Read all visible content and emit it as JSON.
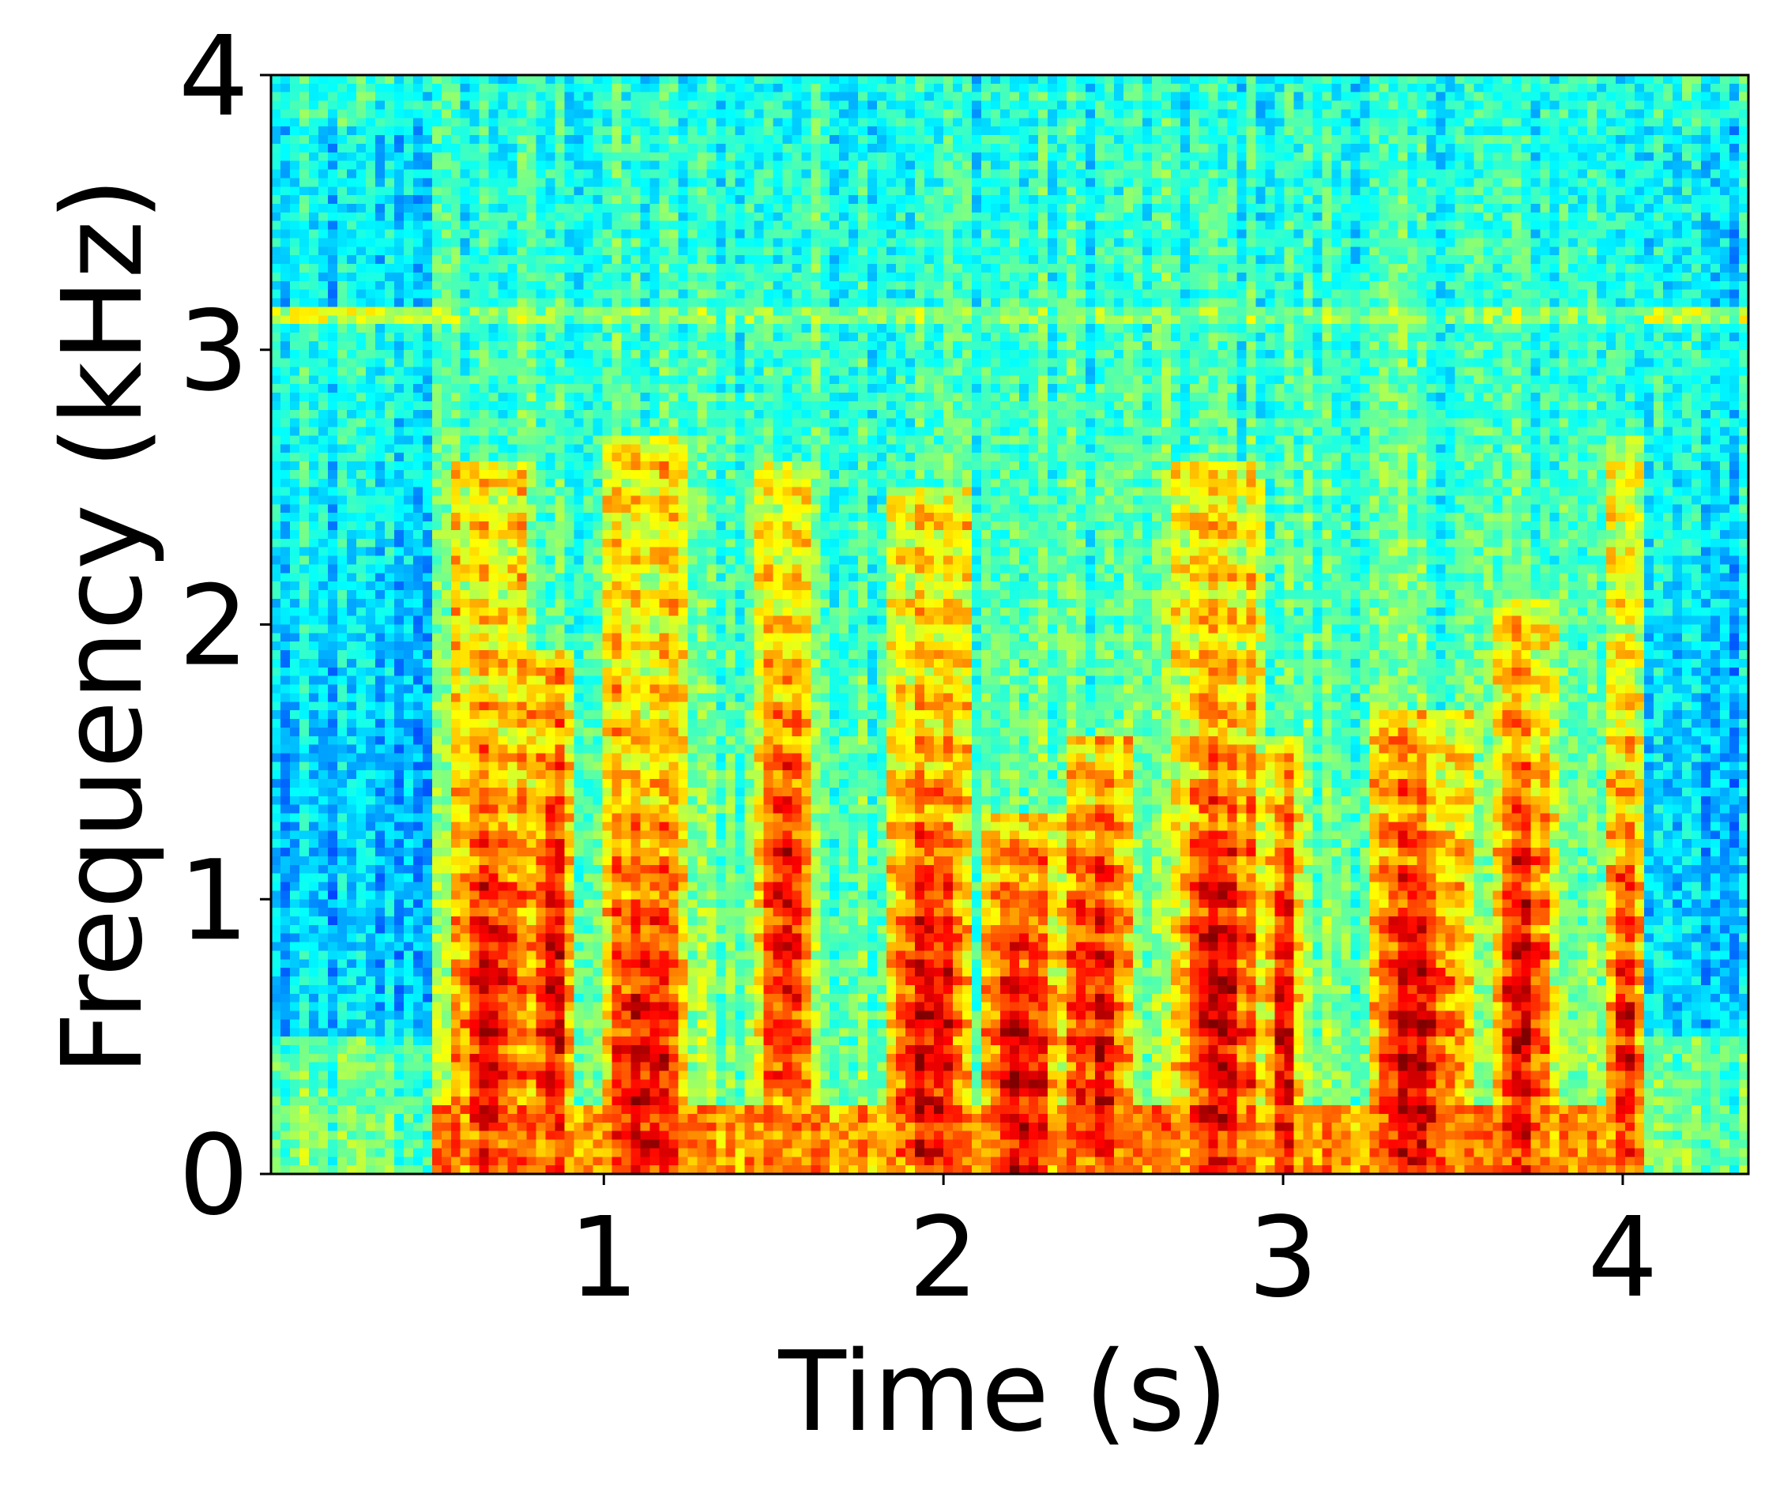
{
  "chart_data": {
    "type": "heatmap",
    "title": "",
    "xlabel": "Time (s)",
    "ylabel": "Frequency (kHz)",
    "xlim": [
      0.02,
      4.37
    ],
    "ylim": [
      0,
      4
    ],
    "x_ticks": [
      1,
      2,
      3,
      4
    ],
    "y_ticks": [
      0,
      1,
      2,
      3,
      4
    ],
    "x_tick_labels": [
      "1",
      "2",
      "3",
      "4"
    ],
    "y_tick_labels": [
      "0",
      "1",
      "2",
      "3",
      "4"
    ],
    "colormap": "jet",
    "grid": false,
    "time_bins": 156,
    "freq_bins": 128,
    "speech_onset_s": 0.5,
    "speech_offset_s": 4.07,
    "tonal_line_khz": 3.13,
    "syllables": [
      {
        "t0": 0.55,
        "t1": 0.78,
        "f_peak_khz": 0.6,
        "f_top_khz": 2.6
      },
      {
        "t0": 0.78,
        "t1": 0.92,
        "f_peak_khz": 0.7,
        "f_top_khz": 1.9
      },
      {
        "t0": 1.0,
        "t1": 1.25,
        "f_peak_khz": 0.3,
        "f_top_khz": 2.7
      },
      {
        "t0": 1.45,
        "t1": 1.62,
        "f_peak_khz": 0.9,
        "f_top_khz": 2.6
      },
      {
        "t0": 1.82,
        "t1": 2.08,
        "f_peak_khz": 0.5,
        "f_top_khz": 2.5
      },
      {
        "t0": 2.1,
        "t1": 2.35,
        "f_peak_khz": 0.3,
        "f_top_khz": 1.3
      },
      {
        "t0": 2.35,
        "t1": 2.55,
        "f_peak_khz": 0.5,
        "f_top_khz": 1.6
      },
      {
        "t0": 2.68,
        "t1": 2.95,
        "f_peak_khz": 0.6,
        "f_top_khz": 2.6
      },
      {
        "t0": 2.95,
        "t1": 3.05,
        "f_peak_khz": 0.4,
        "f_top_khz": 1.6
      },
      {
        "t0": 3.25,
        "t1": 3.55,
        "f_peak_khz": 0.4,
        "f_top_khz": 1.7
      },
      {
        "t0": 3.62,
        "t1": 3.8,
        "f_peak_khz": 0.6,
        "f_top_khz": 2.1
      },
      {
        "t0": 3.95,
        "t1": 4.07,
        "f_peak_khz": 0.5,
        "f_top_khz": 2.7
      }
    ]
  }
}
